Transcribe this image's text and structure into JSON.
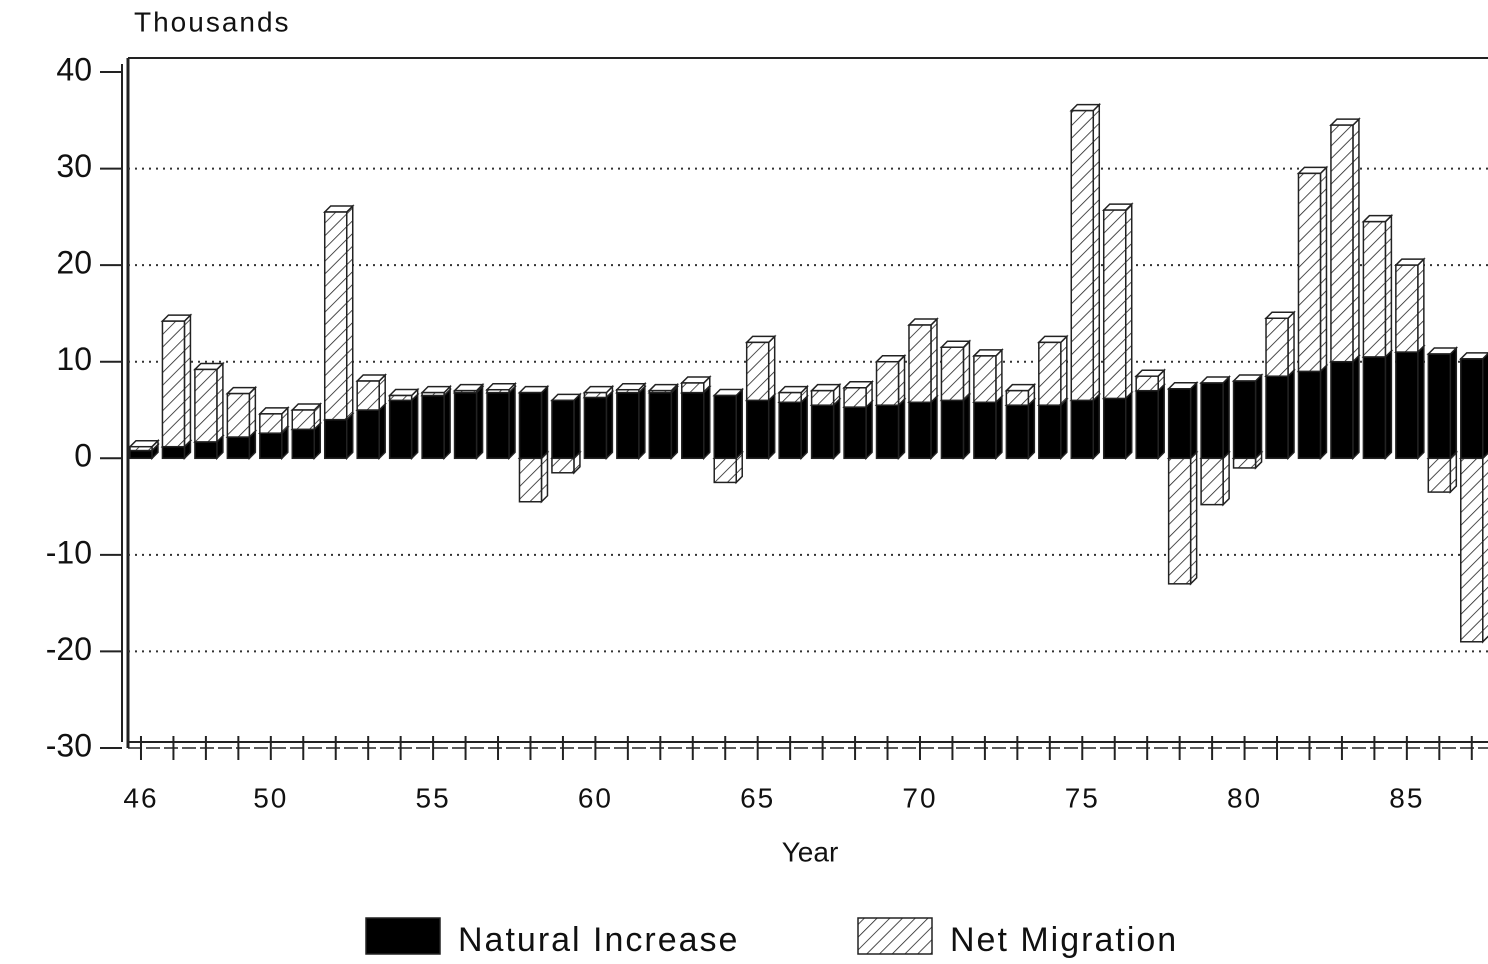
{
  "chart_data": {
    "type": "bar",
    "stacked": true,
    "title": "Thousands",
    "x_label": "Year",
    "x": [
      46,
      47,
      48,
      49,
      50,
      51,
      52,
      53,
      54,
      55,
      56,
      57,
      58,
      59,
      60,
      61,
      62,
      63,
      64,
      65,
      66,
      67,
      68,
      69,
      70,
      71,
      72,
      73,
      74,
      75,
      76,
      77,
      78,
      79,
      80,
      81,
      82,
      83,
      84,
      85,
      86,
      87
    ],
    "xlim": [
      45.6,
      87.5
    ],
    "xticks": [
      46,
      50,
      55,
      60,
      65,
      70,
      75,
      80,
      85
    ],
    "ylim": [
      -30,
      40
    ],
    "yticks": [
      -30,
      -20,
      -10,
      0,
      10,
      20,
      30,
      40
    ],
    "grid": true,
    "legend": "bottom",
    "series": [
      {
        "name": "Natural Increase",
        "color": "#000000",
        "values": [
          0.8,
          1.2,
          1.7,
          2.2,
          2.6,
          3,
          4,
          5,
          6,
          6.5,
          6.8,
          6.8,
          6.8,
          6,
          6.3,
          6.8,
          6.8,
          6.8,
          6.5,
          6,
          5.8,
          5.5,
          5.3,
          5.5,
          5.8,
          6,
          5.8,
          5.5,
          5.5,
          6,
          6.2,
          7,
          7.2,
          7.8,
          8,
          8.5,
          9,
          10,
          10.5,
          11,
          10.8,
          10.3
        ]
      },
      {
        "name": "Net Migration",
        "color": "hatch",
        "values": [
          0.4,
          13,
          7.5,
          4.5,
          2,
          2,
          21.5,
          3,
          0.5,
          0.3,
          0.2,
          0.3,
          -4.5,
          -1.5,
          0.5,
          0.3,
          0.2,
          1,
          -2.5,
          6,
          1,
          1.5,
          2,
          4.5,
          8,
          5.5,
          4.8,
          1.5,
          6.5,
          30,
          19.5,
          1.5,
          -13,
          -4.8,
          -1,
          6,
          20.5,
          24.5,
          14,
          9,
          -3.5,
          -19
        ]
      }
    ]
  }
}
